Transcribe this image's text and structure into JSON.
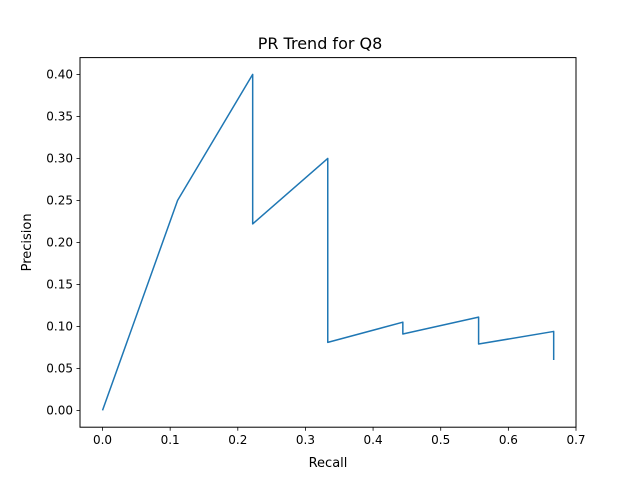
{
  "chart_data": {
    "type": "line",
    "title": "PR Trend for Q8",
    "xlabel": "Recall",
    "ylabel": "Precision",
    "xlim": [
      -0.0333,
      0.7
    ],
    "ylim": [
      -0.02,
      0.42
    ],
    "xticks": [
      0.0,
      0.1,
      0.2,
      0.3,
      0.4,
      0.5,
      0.6,
      0.7
    ],
    "xtick_labels": [
      "0.0",
      "0.1",
      "0.2",
      "0.3",
      "0.4",
      "0.5",
      "0.6",
      "0.7"
    ],
    "yticks": [
      0.0,
      0.05,
      0.1,
      0.15,
      0.2,
      0.25,
      0.3,
      0.35,
      0.4
    ],
    "ytick_labels": [
      "0.00",
      "0.05",
      "0.10",
      "0.15",
      "0.20",
      "0.25",
      "0.30",
      "0.35",
      "0.40"
    ],
    "grid": false,
    "series": [
      {
        "color": "#1f77b4",
        "x": [
          0.0,
          0.111,
          0.222,
          0.222,
          0.333,
          0.333,
          0.444,
          0.444,
          0.556,
          0.556,
          0.667,
          0.667
        ],
        "y": [
          0.0,
          0.25,
          0.4,
          0.222,
          0.3,
          0.081,
          0.105,
          0.091,
          0.111,
          0.079,
          0.094,
          0.06
        ]
      }
    ]
  }
}
